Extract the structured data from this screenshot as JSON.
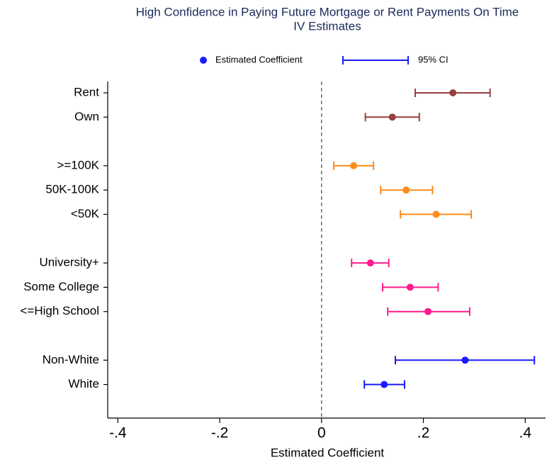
{
  "chart_data": {
    "type": "coefplot",
    "title": [
      "High Confidence in Paying Future Mortgage or Rent Payments On Time",
      "IV Estimates"
    ],
    "x_label": "Estimated Coefficient",
    "categories": [
      "Rent",
      "Own",
      null,
      ">=100K",
      "50K-100K",
      "<50K",
      null,
      "University+",
      "Some College",
      "<=High School",
      null,
      "Non-White",
      "White"
    ],
    "colors": [
      "#993f3f",
      "#993f3f",
      null,
      "#ff8c1a",
      "#ff8c1a",
      "#ff8c1a",
      null,
      "#ff1a8c",
      "#ff1a8c",
      "#ff1a8c",
      null,
      "#1a1aff",
      "#1a1aff"
    ],
    "series": [
      {
        "name": "Estimated Coefficient",
        "values": [
          0.258,
          0.139,
          null,
          0.063,
          0.166,
          0.225,
          null,
          0.096,
          0.174,
          0.209,
          null,
          0.282,
          0.123
        ]
      },
      {
        "name": "95% CI",
        "low": [
          0.184,
          0.086,
          null,
          0.024,
          0.116,
          0.155,
          null,
          0.059,
          0.12,
          0.13,
          null,
          0.145,
          0.084
        ],
        "high": [
          0.331,
          0.192,
          null,
          0.102,
          0.218,
          0.294,
          null,
          0.132,
          0.229,
          0.291,
          null,
          0.418,
          0.163
        ]
      }
    ],
    "legend_color": "#1a1aff",
    "xline": 0,
    "xlim": [
      -0.42,
      0.44
    ],
    "xticks": [
      {
        "value": -0.4,
        "label": "-.4"
      },
      {
        "value": -0.2,
        "label": "-.2"
      },
      0,
      {
        "value": 0.2,
        "label": ".2"
      },
      {
        "value": 0.4,
        "label": ".4"
      }
    ]
  }
}
